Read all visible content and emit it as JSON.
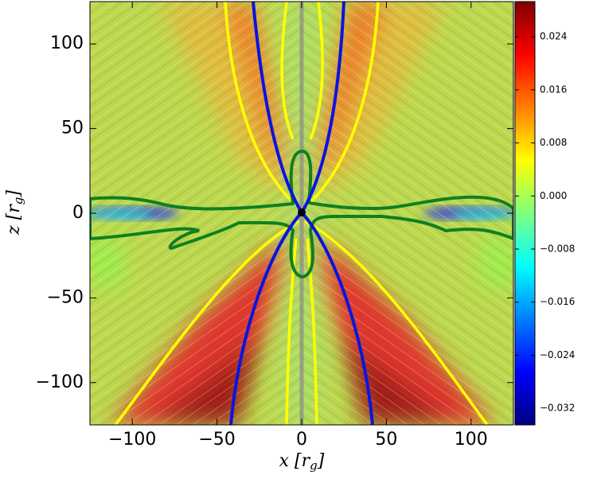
{
  "chart_data": {
    "type": "heatmap",
    "xlabel": {
      "main": "x [r",
      "sub": "g",
      "end": "]"
    },
    "ylabel": {
      "main": "z [r",
      "sub": "g",
      "end": "]"
    },
    "xlim": [
      -125,
      125
    ],
    "ylim": [
      -125,
      125
    ],
    "xticks": [
      {
        "value": -100,
        "label": "−100"
      },
      {
        "value": -50,
        "label": "−50"
      },
      0,
      50,
      100
    ],
    "yticks": [
      {
        "value": -100,
        "label": "−100"
      },
      {
        "value": -50,
        "label": "−50"
      },
      0,
      50,
      100
    ],
    "colorbar": {
      "colormap": "jet",
      "clim": [
        -0.0345,
        0.0293
      ],
      "ticks": [
        {
          "value": -0.032,
          "label": "−0.032"
        },
        {
          "value": -0.024,
          "label": "−0.024"
        },
        {
          "value": -0.016,
          "label": "−0.016"
        },
        {
          "value": -0.008,
          "label": "−0.008"
        },
        {
          "value": 0,
          "label": "0.000"
        },
        0.008,
        0.016,
        0.024
      ]
    }
  }
}
